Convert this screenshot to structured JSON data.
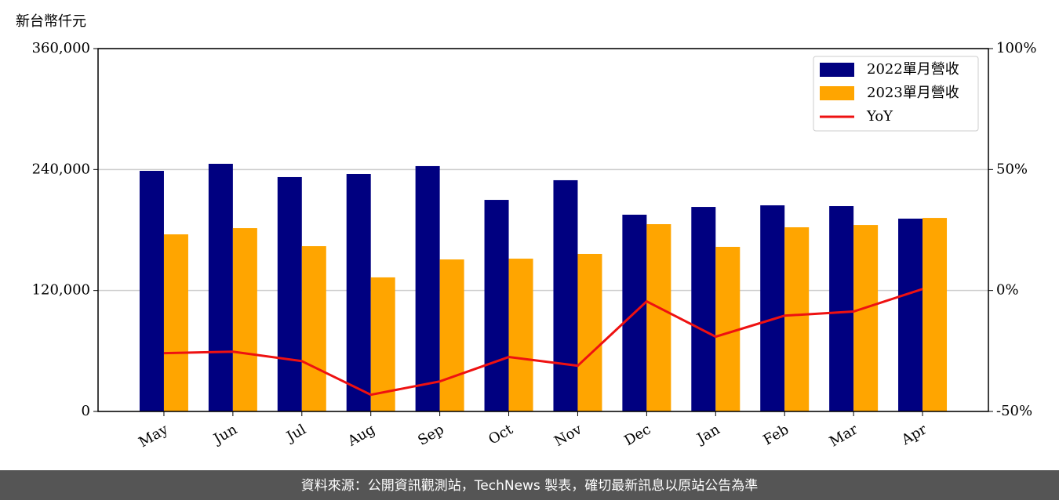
{
  "chart_data": {
    "type": "bar",
    "y_label": "新台幣仟元",
    "categories": [
      "May",
      "Jun",
      "Jul",
      "Aug",
      "Sep",
      "Oct",
      "Nov",
      "Dec",
      "Jan",
      "Feb",
      "Mar",
      "Apr"
    ],
    "series": [
      {
        "name": "2022單月營收",
        "color": "#000080",
        "type": "bar",
        "values": [
          238700,
          245700,
          232500,
          235600,
          243400,
          209900,
          229400,
          195200,
          202900,
          204500,
          203700,
          191300
        ]
      },
      {
        "name": "2023單月營收",
        "color": "#ffa500",
        "type": "bar",
        "values": [
          175700,
          181900,
          164000,
          133000,
          150800,
          151600,
          156300,
          185800,
          163300,
          182700,
          185000,
          192000
        ]
      },
      {
        "name": "YoY",
        "color": "#ee1111",
        "type": "line",
        "axis": "y2",
        "values": [
          -25.9,
          -25.3,
          -29.2,
          -43.1,
          -37.6,
          -27.5,
          -31.1,
          -4.5,
          -19.1,
          -10.4,
          -8.7,
          0.6
        ]
      }
    ],
    "ylim": [
      0,
      360000
    ],
    "yticks": [
      0,
      {
        "value": 120000,
        "label": "120,000"
      },
      {
        "value": 240000,
        "label": "240,000"
      },
      {
        "value": 360000,
        "label": "360,000"
      }
    ],
    "y2lim": [
      -50,
      100
    ],
    "y2ticks": [
      {
        "value": -50,
        "label": "-50%"
      },
      {
        "value": 0,
        "label": "0%"
      },
      {
        "value": 50,
        "label": "50%"
      },
      {
        "value": 100,
        "label": "100%"
      }
    ],
    "grid": true,
    "legend": "upper-right",
    "source": "資料來源：公開資訊觀測站，TechNews 製表，確切最新訊息以原站公告為準"
  }
}
